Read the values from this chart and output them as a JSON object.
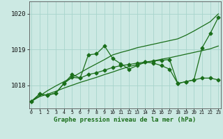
{
  "x": [
    0,
    1,
    2,
    3,
    4,
    5,
    6,
    7,
    8,
    9,
    10,
    11,
    12,
    13,
    14,
    15,
    16,
    17,
    18,
    19,
    20,
    21,
    22,
    23
  ],
  "line_straight": [
    1017.55,
    1017.7,
    1017.85,
    1017.98,
    1018.1,
    1018.22,
    1018.35,
    1018.48,
    1018.6,
    1018.72,
    1018.85,
    1018.92,
    1018.98,
    1019.05,
    1019.1,
    1019.15,
    1019.2,
    1019.25,
    1019.3,
    1019.4,
    1019.52,
    1019.65,
    1019.78,
    1020.0
  ],
  "line_straight2": [
    1017.55,
    1017.68,
    1017.75,
    1017.83,
    1017.92,
    1018.0,
    1018.08,
    1018.15,
    1018.22,
    1018.3,
    1018.37,
    1018.45,
    1018.52,
    1018.58,
    1018.63,
    1018.68,
    1018.73,
    1018.77,
    1018.82,
    1018.87,
    1018.92,
    1018.97,
    1019.02,
    1019.1
  ],
  "line_mid": [
    1017.55,
    1017.75,
    1017.72,
    1017.78,
    1018.05,
    1018.22,
    1018.2,
    1018.3,
    1018.35,
    1018.42,
    1018.5,
    1018.55,
    1018.58,
    1018.62,
    1018.65,
    1018.68,
    1018.7,
    1018.72,
    1018.05,
    1018.1,
    1018.15,
    1018.2,
    1018.2,
    1018.15
  ],
  "line_upper": [
    1017.55,
    1017.75,
    1017.72,
    1017.78,
    1018.05,
    1018.3,
    1018.2,
    1018.85,
    1018.88,
    1019.1,
    1018.75,
    1018.6,
    1018.45,
    1018.55,
    1018.65,
    1018.62,
    1018.55,
    1018.45,
    1018.05,
    1018.1,
    1018.15,
    1019.05,
    1019.45,
    1019.9
  ],
  "line_color": "#1a6e1a",
  "bg_color": "#cce9e3",
  "grid_color": "#a8d4cc",
  "ylim": [
    1017.35,
    1020.35
  ],
  "xlim": [
    -0.3,
    23.3
  ],
  "yticks": [
    1018,
    1019,
    1020
  ],
  "xticks": [
    0,
    1,
    2,
    3,
    4,
    5,
    6,
    7,
    8,
    9,
    10,
    11,
    12,
    13,
    14,
    15,
    16,
    17,
    18,
    19,
    20,
    21,
    22,
    23
  ],
  "xlabel": "Graphe pression niveau de la mer (hPa)",
  "marker": "D",
  "marker_size": 2.5,
  "lw": 0.9
}
